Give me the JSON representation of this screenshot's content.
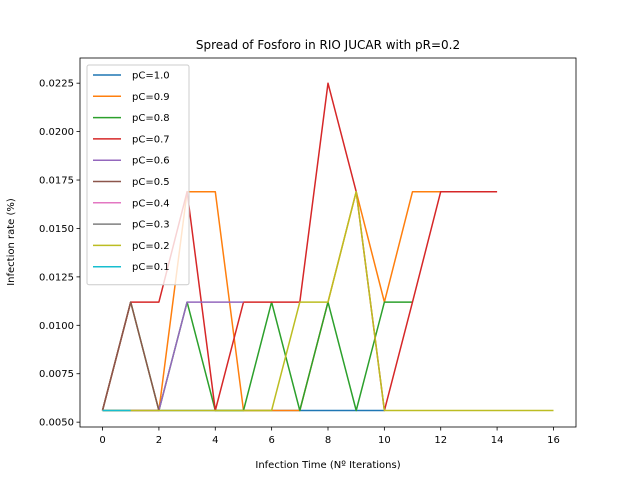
{
  "chart_data": {
    "type": "line",
    "title": "Spread of Fosforo in RIO JUCAR with pR=0.2",
    "xlabel": "Infection Time (Nº Iterations)",
    "ylabel": "Infection rate (%)",
    "xlim": [
      -0.8,
      16.8
    ],
    "ylim": [
      0.00475,
      0.0238
    ],
    "xticks": [
      0,
      2,
      4,
      6,
      8,
      10,
      12,
      14,
      16
    ],
    "yticks": [
      0.005,
      0.0075,
      0.01,
      0.0125,
      0.015,
      0.0175,
      0.02,
      0.0225
    ],
    "ytick_labels": [
      "0.0050",
      "0.0075",
      "0.0100",
      "0.0125",
      "0.0150",
      "0.0175",
      "0.0200",
      "0.0225"
    ],
    "legend_position": "upper-left",
    "grid": false,
    "series": [
      {
        "name": "pC=1.0",
        "color": "#1f77b4",
        "x": [
          0,
          1,
          2,
          3,
          4,
          5,
          6,
          7,
          8,
          9,
          10
        ],
        "y": [
          0.0056,
          0.0056,
          0.0056,
          0.0056,
          0.0056,
          0.0056,
          0.0056,
          0.0056,
          0.0056,
          0.0056,
          0.0056
        ]
      },
      {
        "name": "pC=0.9",
        "color": "#ff7f0e",
        "x": [
          0,
          1,
          2,
          3,
          4,
          5,
          6,
          7,
          8,
          9,
          10,
          11,
          12,
          13
        ],
        "y": [
          0.0056,
          0.0056,
          0.0056,
          0.0169,
          0.0169,
          0.0056,
          0.0056,
          0.0056,
          0.0112,
          0.0169,
          0.0112,
          0.0169,
          0.0169,
          0.0169
        ]
      },
      {
        "name": "pC=0.8",
        "color": "#2ca02c",
        "x": [
          0,
          1,
          2,
          3,
          4,
          5,
          6,
          7,
          8,
          9,
          10,
          11
        ],
        "y": [
          0.0056,
          0.0112,
          0.0056,
          0.0112,
          0.0056,
          0.0056,
          0.0112,
          0.0056,
          0.0112,
          0.0056,
          0.0112,
          0.0112
        ]
      },
      {
        "name": "pC=0.7",
        "color": "#d62728",
        "x": [
          0,
          1,
          2,
          3,
          4,
          5,
          6,
          7,
          8,
          9,
          10,
          11,
          12,
          13,
          14
        ],
        "y": [
          0.0056,
          0.0112,
          0.0112,
          0.0169,
          0.0056,
          0.0112,
          0.0112,
          0.0112,
          0.0225,
          0.0169,
          0.0056,
          0.0112,
          0.0169,
          0.0169,
          0.0169
        ]
      },
      {
        "name": "pC=0.6",
        "color": "#9467bd",
        "x": [
          0,
          1,
          2,
          3,
          4,
          5
        ],
        "y": [
          0.0056,
          0.0056,
          0.0056,
          0.0112,
          0.0112,
          0.0112
        ]
      },
      {
        "name": "pC=0.5",
        "color": "#8c564b",
        "x": [
          0,
          1,
          2
        ],
        "y": [
          0.0056,
          0.0112,
          0.0056
        ]
      },
      {
        "name": "pC=0.4",
        "color": "#e377c2",
        "x": [
          0,
          1
        ],
        "y": [
          0.0056,
          0.0056
        ]
      },
      {
        "name": "pC=0.3",
        "color": "#7f7f7f",
        "x": [
          0,
          1
        ],
        "y": [
          0.0056,
          0.0056
        ]
      },
      {
        "name": "pC=0.2",
        "color": "#bcbd22",
        "x": [
          0,
          1,
          2,
          3,
          4,
          5,
          6,
          7,
          8,
          9,
          10,
          11,
          12,
          13,
          14,
          15,
          16
        ],
        "y": [
          0.0056,
          0.0056,
          0.0056,
          0.0056,
          0.0056,
          0.0056,
          0.0056,
          0.0112,
          0.0112,
          0.0169,
          0.0056,
          0.0056,
          0.0056,
          0.0056,
          0.0056,
          0.0056,
          0.0056
        ]
      },
      {
        "name": "pC=0.1",
        "color": "#17becf",
        "x": [
          0,
          1
        ],
        "y": [
          0.0056,
          0.0056
        ]
      }
    ]
  }
}
